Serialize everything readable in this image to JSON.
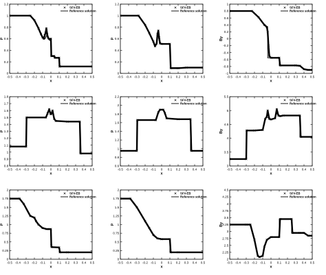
{
  "chart_data": [
    {
      "type": "line",
      "xlabel": "x",
      "ylabel": "ρ",
      "xlim": [
        -0.5,
        0.5
      ],
      "ylim": [
        0,
        1.2
      ],
      "xticks": [
        "-0.5",
        "-0.4",
        "-0.3",
        "-0.2",
        "-0.1",
        "0",
        "0.1",
        "0.2",
        "0.3",
        "0.4",
        "0.5"
      ],
      "yticks": [
        "0",
        "0.2",
        "0.4",
        "0.6",
        "0.8",
        "1",
        "1.2"
      ],
      "legend": "top-right",
      "series": [
        {
          "name": "SFV-EB",
          "marker": "cross",
          "x": [
            -0.5,
            -0.25,
            -0.2,
            -0.15,
            -0.12,
            -0.1,
            -0.085,
            -0.075,
            -0.065,
            -0.055,
            -0.045,
            -0.035,
            -0.025,
            -0.015,
            -0.005,
            0.0,
            0.005,
            0.04,
            0.045,
            0.05,
            0.1,
            0.105,
            0.11,
            0.5
          ],
          "y": [
            1,
            1,
            0.92,
            0.78,
            0.68,
            0.62,
            0.6,
            0.66,
            0.7,
            0.78,
            0.68,
            0.62,
            0.6,
            0.59,
            0.58,
            0.6,
            0.3,
            0.3,
            0.28,
            0.27,
            0.27,
            0.12,
            0.12,
            0.12
          ]
        },
        {
          "name": "Reference solution",
          "x": [
            -0.5,
            -0.25,
            -0.2,
            -0.15,
            -0.12,
            -0.1,
            -0.07,
            -0.05,
            -0.03,
            0.0,
            0.0,
            0.045,
            0.05,
            0.1,
            0.1,
            0.5
          ],
          "y": [
            1,
            1,
            0.92,
            0.78,
            0.68,
            0.62,
            0.6,
            0.66,
            0.6,
            0.58,
            0.3,
            0.3,
            0.27,
            0.27,
            0.12,
            0.12
          ]
        }
      ]
    },
    {
      "type": "line",
      "xlabel": "x",
      "ylabel": "p",
      "xlim": [
        -0.5,
        0.5
      ],
      "ylim": [
        0,
        1.2
      ],
      "xticks": [
        "-0.5",
        "-0.4",
        "-0.3",
        "-0.2",
        "-0.1",
        "0",
        "0.1",
        "0.2",
        "0.3",
        "0.4",
        "0.5"
      ],
      "yticks": [
        "0",
        "0.2",
        "0.4",
        "0.6",
        "0.8",
        "1",
        "1.2"
      ],
      "legend": "top-right",
      "series": [
        {
          "name": "SFV-EB",
          "marker": "cross",
          "x": [
            -0.5,
            -0.28,
            -0.2,
            -0.15,
            -0.1,
            -0.08,
            -0.06,
            -0.05,
            -0.04,
            -0.03,
            -0.02,
            0.0,
            0.1,
            0.11,
            0.2,
            0.3,
            0.5
          ],
          "y": [
            1,
            1,
            0.84,
            0.7,
            0.55,
            0.47,
            0.52,
            0.68,
            0.74,
            0.62,
            0.52,
            0.51,
            0.51,
            0.09,
            0.09,
            0.1,
            0.1
          ]
        },
        {
          "name": "Reference solution",
          "x": [
            -0.5,
            -0.28,
            -0.2,
            -0.15,
            -0.1,
            -0.08,
            -0.06,
            -0.05,
            -0.03,
            0.0,
            0.1,
            0.105,
            0.5
          ],
          "y": [
            1,
            1,
            0.84,
            0.7,
            0.55,
            0.47,
            0.52,
            0.72,
            0.56,
            0.51,
            0.51,
            0.1,
            0.1
          ]
        }
      ]
    },
    {
      "type": "line",
      "xlabel": "x",
      "ylabel": "By",
      "xlim": [
        -0.5,
        0.5
      ],
      "ylim": [
        -1,
        1
      ],
      "xticks": [
        "-0.5",
        "-0.4",
        "-0.3",
        "-0.2",
        "-0.1",
        "0",
        "0.1",
        "0.2",
        "0.3",
        "0.4",
        "0.5"
      ],
      "yticks": [
        "-1",
        "-0.8",
        "-0.6",
        "-0.4",
        "-0.2",
        "0",
        "0.2",
        "0.4",
        "0.6",
        "0.8",
        "1"
      ],
      "legend": "top-right",
      "series": [
        {
          "name": "SFV-EB",
          "marker": "cross",
          "x": [
            -0.5,
            -0.23,
            -0.15,
            -0.08,
            -0.05,
            -0.04,
            -0.03,
            -0.02,
            0.0,
            0.1,
            0.11,
            0.3,
            0.35,
            0.4,
            0.45,
            0.5
          ],
          "y": [
            0.8,
            0.8,
            0.62,
            0.4,
            0.34,
            0.2,
            -0.2,
            -0.5,
            -0.55,
            -0.55,
            -0.77,
            -0.77,
            -0.78,
            -0.88,
            -0.9,
            -0.9
          ]
        },
        {
          "name": "Reference solution",
          "x": [
            -0.5,
            -0.23,
            -0.15,
            -0.08,
            -0.05,
            -0.04,
            -0.04,
            -0.02,
            0.0,
            0.1,
            0.1,
            0.3,
            0.35,
            0.4,
            0.45,
            0.5
          ],
          "y": [
            0.8,
            0.8,
            0.62,
            0.4,
            0.34,
            0.34,
            -0.55,
            -0.55,
            -0.55,
            -0.55,
            -0.77,
            -0.77,
            -0.78,
            -0.88,
            -0.9,
            -0.9
          ]
        }
      ]
    },
    {
      "type": "line",
      "xlabel": "x",
      "ylabel": "ρ",
      "xlim": [
        -0.5,
        0.5
      ],
      "ylim": [
        0.8,
        1.8
      ],
      "xticks": [
        "-0.5",
        "-0.4",
        "-0.3",
        "-0.2",
        "-0.1",
        "0",
        "0.1",
        "0.2",
        "0.3",
        "0.4",
        "0.5"
      ],
      "yticks": [
        "0.8",
        "0.9",
        "1",
        "1.1",
        "1.2",
        "1.3",
        "1.4",
        "1.5",
        "1.6",
        "1.7",
        "1.8"
      ],
      "legend": "top-right",
      "series": [
        {
          "name": "SFV-EB",
          "marker": "cross",
          "x": [
            -0.5,
            -0.3,
            -0.295,
            -0.06,
            -0.04,
            -0.02,
            -0.005,
            0.005,
            0.02,
            0.04,
            0.06,
            0.2,
            0.35,
            0.36,
            0.5
          ],
          "y": [
            1.08,
            1.08,
            1.5,
            1.5,
            1.56,
            1.62,
            1.55,
            1.55,
            1.6,
            1.48,
            1.45,
            1.44,
            1.44,
            0.98,
            0.98
          ]
        },
        {
          "name": "Reference solution",
          "x": [
            -0.5,
            -0.3,
            -0.3,
            -0.06,
            -0.04,
            -0.02,
            0.0,
            0.02,
            0.04,
            0.06,
            0.2,
            0.35,
            0.35,
            0.5
          ],
          "y": [
            1.08,
            1.08,
            1.5,
            1.5,
            1.57,
            1.6,
            1.56,
            1.58,
            1.48,
            1.45,
            1.44,
            1.44,
            0.98,
            0.98
          ]
        }
      ]
    },
    {
      "type": "line",
      "xlabel": "x",
      "ylabel": "p",
      "xlim": [
        -0.5,
        0.5
      ],
      "ylim": [
        0.6,
        2.2
      ],
      "xticks": [
        "-0.5",
        "-0.4",
        "-0.3",
        "-0.2",
        "-0.1",
        "0",
        "0.1",
        "0.2",
        "0.3",
        "0.4",
        "0.5"
      ],
      "yticks": [
        "0.6",
        "0.8",
        "1",
        "1.2",
        "1.4",
        "1.6",
        "1.8",
        "2",
        "2.2"
      ],
      "legend": "top-right",
      "series": [
        {
          "name": "SFV-EB",
          "marker": "cross",
          "x": [
            -0.5,
            -0.3,
            -0.295,
            -0.07,
            -0.04,
            -0.02,
            0.02,
            0.04,
            0.06,
            0.2,
            0.35,
            0.36,
            0.5
          ],
          "y": [
            0.95,
            0.95,
            1.66,
            1.66,
            1.84,
            1.9,
            1.9,
            1.82,
            1.7,
            1.68,
            1.68,
            0.95,
            0.95
          ]
        },
        {
          "name": "Reference solution",
          "x": [
            -0.5,
            -0.3,
            -0.3,
            -0.07,
            -0.04,
            -0.02,
            0.02,
            0.04,
            0.06,
            0.2,
            0.35,
            0.35,
            0.5
          ],
          "y": [
            0.95,
            0.95,
            1.66,
            1.66,
            1.84,
            1.9,
            1.9,
            1.82,
            1.7,
            1.68,
            1.68,
            0.95,
            0.95
          ]
        }
      ]
    },
    {
      "type": "line",
      "xlabel": "x",
      "ylabel": "By",
      "xlim": [
        -0.5,
        0.5
      ],
      "ylim": [
        3,
        5.5
      ],
      "xticks": [
        "-0.5",
        "-0.4",
        "-0.3",
        "-0.2",
        "-0.1",
        "0",
        "0.1",
        "0.2",
        "0.3",
        "0.4",
        "0.5"
      ],
      "yticks": [
        "3",
        "3.5",
        "4",
        "4.5",
        "5",
        "5.5"
      ],
      "legend": "top-right",
      "series": [
        {
          "name": "SFV-EB",
          "marker": "cross",
          "x": [
            -0.5,
            -0.3,
            -0.295,
            -0.2,
            -0.1,
            -0.07,
            -0.05,
            -0.04,
            -0.02,
            0.0,
            0.05,
            0.07,
            0.09,
            0.11,
            0.15,
            0.35,
            0.36,
            0.5
          ],
          "y": [
            3.25,
            3.25,
            4.28,
            4.28,
            4.3,
            4.7,
            4.78,
            5.0,
            4.7,
            4.68,
            4.72,
            5.05,
            4.82,
            4.8,
            4.82,
            4.82,
            4.05,
            4.05
          ]
        },
        {
          "name": "Reference solution",
          "x": [
            -0.5,
            -0.3,
            -0.3,
            -0.2,
            -0.1,
            -0.07,
            -0.05,
            -0.03,
            0.0,
            0.05,
            0.07,
            0.09,
            0.11,
            0.15,
            0.35,
            0.35,
            0.5
          ],
          "y": [
            3.25,
            3.25,
            4.28,
            4.28,
            4.3,
            4.7,
            4.78,
            4.72,
            4.68,
            4.72,
            4.9,
            4.82,
            4.8,
            4.82,
            4.82,
            4.05,
            4.05
          ]
        }
      ]
    },
    {
      "type": "line",
      "xlabel": "x",
      "ylabel": "ρ",
      "xlim": [
        -0.5,
        0.5
      ],
      "ylim": [
        0,
        2
      ],
      "xticks": [
        "-0.5",
        "-0.4",
        "-0.3",
        "-0.2",
        "-0.1",
        "0",
        "0.1",
        "0.2",
        "0.3",
        "0.4",
        "0.5"
      ],
      "yticks": [
        "0",
        "0.25",
        "0.5",
        "0.75",
        "1",
        "1.25",
        "1.5",
        "1.75",
        "2"
      ],
      "legend": "top-right",
      "series": [
        {
          "name": "SFV-EB",
          "marker": "cross",
          "x": [
            -0.5,
            -0.38,
            -0.33,
            -0.25,
            -0.2,
            -0.18,
            -0.15,
            -0.1,
            -0.05,
            -0.02,
            0.0,
            0.005,
            0.01,
            0.1,
            0.11,
            0.2,
            0.5
          ],
          "y": [
            1.75,
            1.75,
            1.6,
            1.25,
            1.2,
            1.1,
            1.0,
            0.9,
            0.87,
            0.87,
            0.87,
            0.4,
            0.35,
            0.34,
            0.2,
            0.2,
            0.2
          ]
        },
        {
          "name": "Reference solution",
          "x": [
            -0.5,
            -0.38,
            -0.33,
            -0.25,
            -0.2,
            -0.18,
            -0.15,
            -0.1,
            -0.05,
            0.0,
            0.0,
            0.1,
            0.1,
            0.5
          ],
          "y": [
            1.75,
            1.75,
            1.6,
            1.25,
            1.2,
            1.1,
            1.0,
            0.9,
            0.87,
            0.87,
            0.35,
            0.35,
            0.2,
            0.2
          ]
        }
      ]
    },
    {
      "type": "line",
      "xlabel": "x",
      "ylabel": "p",
      "xlim": [
        -0.5,
        0.5
      ],
      "ylim": [
        0,
        2
      ],
      "xticks": [
        "-0.5",
        "-0.4",
        "-0.3",
        "-0.2",
        "-0.1",
        "0",
        "0.1",
        "0.2",
        "0.3",
        "0.4",
        "0.5"
      ],
      "yticks": [
        "0",
        "0.25",
        "0.5",
        "0.75",
        "1",
        "1.25",
        "1.5",
        "1.75",
        "2"
      ],
      "legend": "top-right",
      "series": [
        {
          "name": "SFV-EB",
          "marker": "cross",
          "x": [
            -0.5,
            -0.38,
            -0.3,
            -0.2,
            -0.15,
            -0.1,
            -0.05,
            0.0,
            0.1,
            0.11,
            0.2,
            0.5
          ],
          "y": [
            1.75,
            1.75,
            1.5,
            1.1,
            0.9,
            0.7,
            0.6,
            0.58,
            0.58,
            0.2,
            0.2,
            0.2
          ]
        },
        {
          "name": "Reference solution",
          "x": [
            -0.5,
            -0.38,
            -0.3,
            -0.2,
            -0.15,
            -0.1,
            -0.05,
            0.0,
            0.1,
            0.1,
            0.5
          ],
          "y": [
            1.75,
            1.75,
            1.5,
            1.1,
            0.9,
            0.7,
            0.6,
            0.58,
            0.58,
            0.2,
            0.2
          ]
        }
      ]
    },
    {
      "type": "line",
      "xlabel": "x",
      "ylabel": "By",
      "xlim": [
        -0.5,
        0.5
      ],
      "ylim": [
        2,
        4.5
      ],
      "xticks": [
        "-0.5",
        "-0.4",
        "-0.3",
        "-0.2",
        "-0.1",
        "0",
        "0.1",
        "0.2",
        "0.3",
        "0.4",
        "0.5"
      ],
      "yticks": [
        "2",
        "2.25",
        "2.5",
        "2.75",
        "3",
        "3.25",
        "3.5",
        "3.75",
        "4",
        "4.25",
        "4.5"
      ],
      "legend": "top-right",
      "series": [
        {
          "name": "SFV-EB",
          "marker": "cross",
          "x": [
            -0.5,
            -0.3,
            -0.25,
            -0.2,
            -0.16,
            -0.14,
            -0.1,
            -0.08,
            -0.05,
            0.0,
            0.1,
            0.11,
            0.25,
            0.26,
            0.35,
            0.4,
            0.45,
            0.5
          ],
          "y": [
            3.25,
            3.25,
            3.25,
            2.7,
            2.12,
            2.08,
            2.12,
            2.45,
            2.7,
            2.8,
            2.8,
            3.45,
            3.45,
            2.95,
            2.95,
            2.95,
            2.85,
            2.85
          ]
        },
        {
          "name": "Reference solution",
          "x": [
            -0.5,
            -0.3,
            -0.25,
            -0.2,
            -0.16,
            -0.14,
            -0.1,
            -0.08,
            -0.05,
            0.0,
            0.1,
            0.1,
            0.25,
            0.25,
            0.35,
            0.4,
            0.45,
            0.5
          ],
          "y": [
            3.25,
            3.25,
            3.25,
            2.7,
            2.12,
            2.08,
            2.12,
            2.45,
            2.7,
            2.8,
            2.8,
            3.45,
            3.45,
            2.95,
            2.95,
            2.95,
            2.85,
            2.85
          ]
        }
      ]
    }
  ]
}
